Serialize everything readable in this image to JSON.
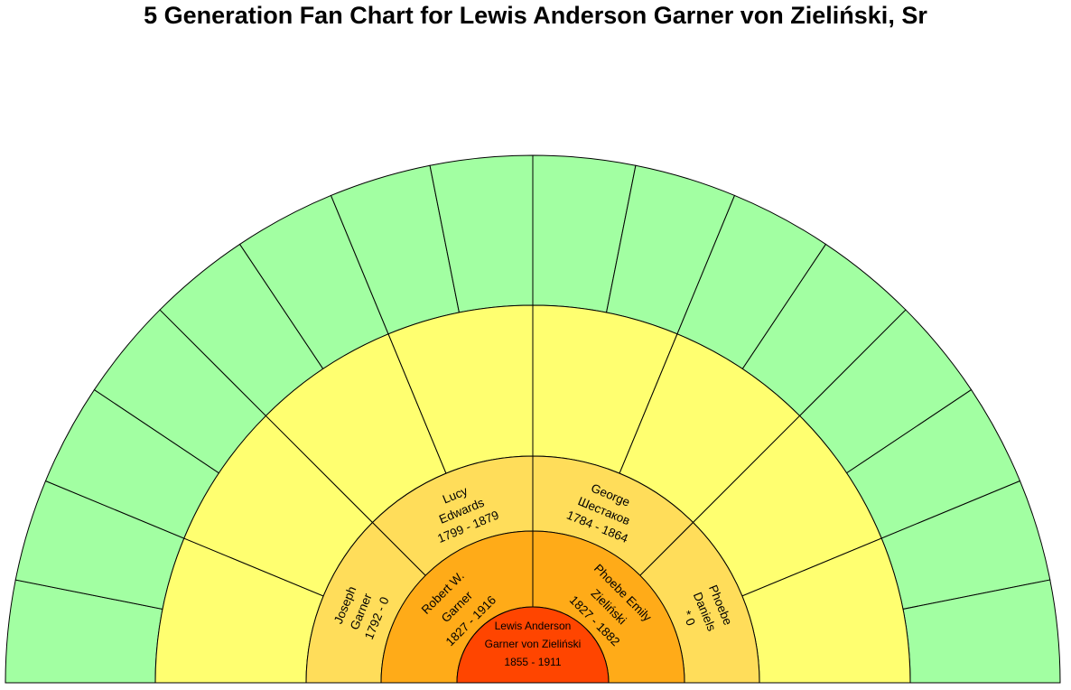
{
  "title": "5 Generation Fan Chart for Lewis Anderson Garner von Zieliński, Sr",
  "colors": {
    "generation_1": "#ff4500",
    "generation_2": "#ffab18",
    "generation_3": "#ffdd5a",
    "generation_4": "#ffff70",
    "generation_5": "#a2ffa2",
    "stroke": "#000000"
  },
  "center_person": {
    "lines": [
      "Lewis Anderson",
      "Garner von Zieliński",
      "1855 - 1911"
    ]
  },
  "generations": [
    {
      "generation": 2,
      "slots": [
        {
          "lines": [
            "Robert W.",
            "Garner",
            "1827 - 1916"
          ]
        },
        {
          "lines": [
            "Phoebe Emily",
            "Zieliński",
            "1827 - 1882"
          ]
        }
      ]
    },
    {
      "generation": 3,
      "slots": [
        {
          "lines": [
            "Joseph",
            "Garner",
            "1792 - 0"
          ]
        },
        {
          "lines": [
            "Lucy",
            "Edwards",
            "1799 - 1879"
          ]
        },
        {
          "lines": [
            "George",
            "Шестаков",
            "1784 - 1864"
          ]
        },
        {
          "lines": [
            "Phoebe",
            "Daniels",
            "* 0"
          ]
        }
      ]
    },
    {
      "generation": 4,
      "slots": [
        {
          "lines": []
        },
        {
          "lines": []
        },
        {
          "lines": []
        },
        {
          "lines": []
        },
        {
          "lines": []
        },
        {
          "lines": []
        },
        {
          "lines": []
        },
        {
          "lines": []
        }
      ]
    },
    {
      "generation": 5,
      "slots": [
        {
          "lines": []
        },
        {
          "lines": []
        },
        {
          "lines": []
        },
        {
          "lines": []
        },
        {
          "lines": []
        },
        {
          "lines": []
        },
        {
          "lines": []
        },
        {
          "lines": []
        },
        {
          "lines": []
        },
        {
          "lines": []
        },
        {
          "lines": []
        },
        {
          "lines": []
        },
        {
          "lines": []
        },
        {
          "lines": []
        },
        {
          "lines": []
        },
        {
          "lines": []
        }
      ]
    }
  ]
}
